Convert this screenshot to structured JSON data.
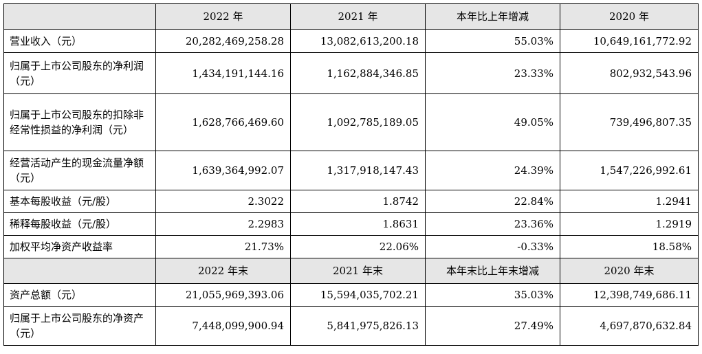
{
  "header1": [
    "2022 年",
    "2021 年",
    "本年比上年增减",
    "2020 年"
  ],
  "rows1": [
    {
      "label": "营业收入（元）",
      "values": [
        "20,282,469,258.28",
        "13,082,613,200.18",
        "55.03%",
        "10,649,161,772.92"
      ]
    },
    {
      "label": "归属于上市公司股东的净利润（元）",
      "values": [
        "1,434,191,144.16",
        "1,162,884,346.85",
        "23.33%",
        "802,932,543.96"
      ]
    },
    {
      "label": "归属于上市公司股东的扣除非经常性损益的净利润（元）",
      "values": [
        "1,628,766,469.60",
        "1,092,785,189.05",
        "49.05%",
        "739,496,807.35"
      ]
    },
    {
      "label": "经营活动产生的现金流量净额（元）",
      "values": [
        "1,639,364,992.07",
        "1,317,918,147.43",
        "24.39%",
        "1,547,226,992.61"
      ]
    },
    {
      "label": "基本每股收益（元/股）",
      "values": [
        "2.3022",
        "1.8742",
        "22.84%",
        "1.2941"
      ]
    },
    {
      "label": "稀释每股收益（元/股）",
      "values": [
        "2.2983",
        "1.8631",
        "23.36%",
        "1.2919"
      ]
    },
    {
      "label": "加权平均净资产收益率",
      "values": [
        "21.73%",
        "22.06%",
        "-0.33%",
        "18.58%"
      ]
    }
  ],
  "header2": [
    "2022 年末",
    "2021 年末",
    "本年末比上年末增减",
    "2020 年末"
  ],
  "rows2": [
    {
      "label": "资产总额（元）",
      "values": [
        "21,055,969,393.06",
        "15,594,035,702.21",
        "35.03%",
        "12,398,749,686.11"
      ]
    },
    {
      "label": "归属于上市公司股东的净资产（元）",
      "values": [
        "7,448,099,900.94",
        "5,841,975,826.13",
        "27.49%",
        "4,697,870,632.84"
      ]
    }
  ]
}
